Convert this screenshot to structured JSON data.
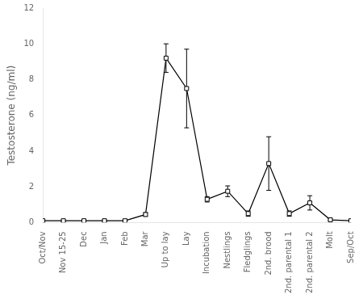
{
  "chart_data": {
    "type": "line",
    "categories": [
      "Oct/Nov",
      "Nov 15-25",
      "Dec",
      "Jan",
      "Feb",
      "Mar",
      "Up to lay",
      "Lay",
      "Incubation",
      "Nestlings",
      "Fledglings",
      "2nd. brood",
      "2nd. parental 1",
      "2nd. parental 2",
      "Molt",
      "Sep/Oct"
    ],
    "values": [
      0.1,
      0.1,
      0.1,
      0.1,
      0.1,
      0.45,
      9.2,
      7.5,
      1.3,
      1.75,
      0.5,
      3.3,
      0.5,
      1.1,
      0.15,
      0.1
    ],
    "error_upper": [
      0.05,
      0.05,
      0.05,
      0.05,
      0.05,
      0.1,
      0.8,
      2.2,
      0.15,
      0.3,
      0.15,
      1.5,
      0.15,
      0.4,
      0.05,
      0.05
    ],
    "error_lower": [
      0.05,
      0.05,
      0.05,
      0.05,
      0.05,
      0.1,
      0.8,
      2.2,
      0.15,
      0.3,
      0.15,
      1.5,
      0.15,
      0.4,
      0.05,
      0.05
    ],
    "y_label": "Testosterone (ng/ml)",
    "ylim": [
      0,
      12
    ],
    "yticks": [
      0,
      2,
      4,
      6,
      8,
      10,
      12
    ],
    "color": "#000000",
    "marker": "square",
    "grid": false
  }
}
